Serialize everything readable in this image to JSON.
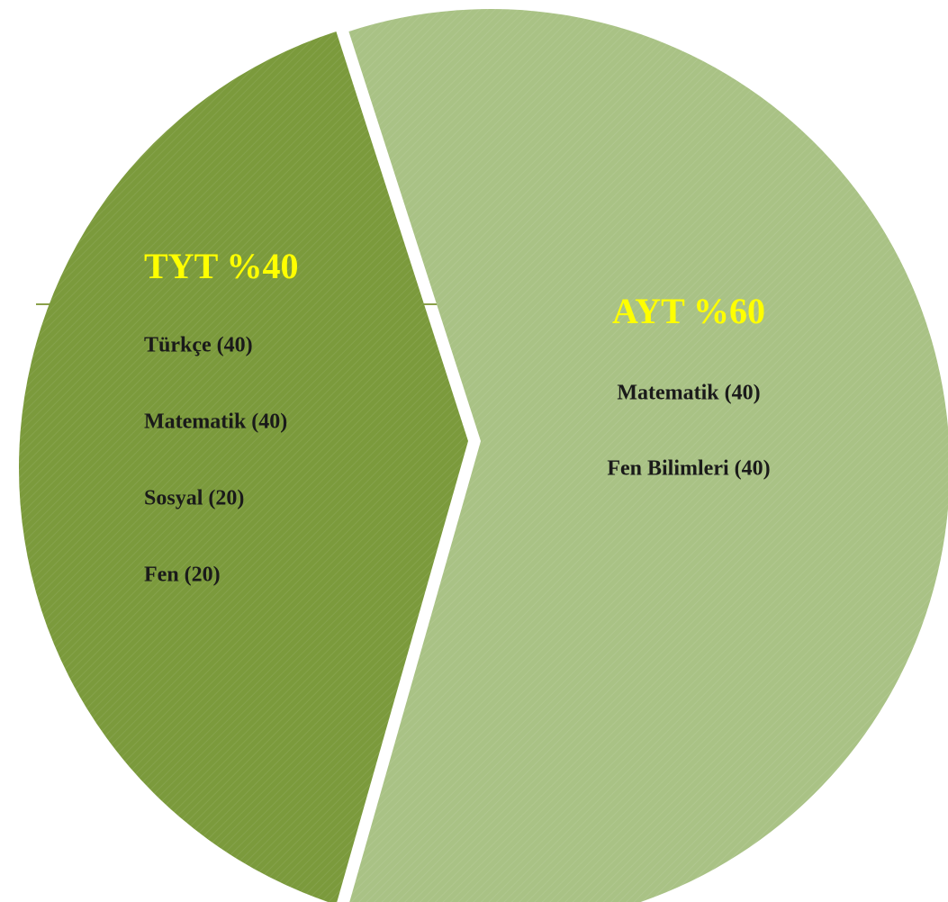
{
  "chart_data": {
    "type": "pie",
    "categories": [
      "TYT",
      "AYT"
    ],
    "values": [
      40,
      60
    ],
    "value_labels": [
      "%40",
      "%60"
    ],
    "colors": [
      "#7b9a3c",
      "#a9c285"
    ],
    "details": [
      [
        "Türkçe (40)",
        "Matematik (40)",
        "Sosyal (20)",
        "Fen (20)"
      ],
      [
        "Matematik (40)",
        "Fen Bilimleri (40)"
      ]
    ]
  }
}
